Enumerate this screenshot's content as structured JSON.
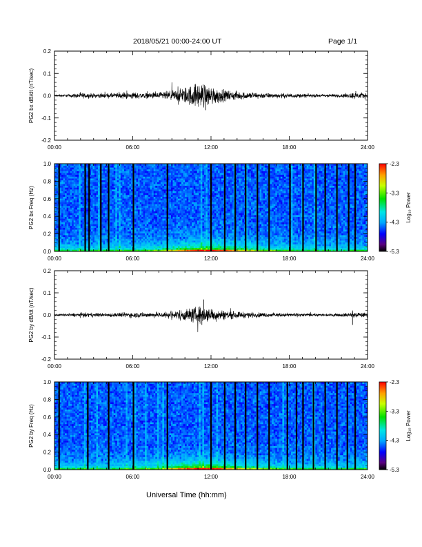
{
  "header": {
    "date_range": "2018/05/21  00:00-24:00 UT",
    "page": "Page 1/1"
  },
  "xlabel": "Universal Time (hh:mm)",
  "x_ticks": [
    "00:00",
    "06:00",
    "12:00",
    "18:00",
    "24:00"
  ],
  "colors": {
    "trace": "#000000",
    "background": "#ffffff"
  },
  "chart_data": [
    {
      "type": "line",
      "name": "time-series-bx",
      "ylabel": "PG2 bx dB/dt (nT/sec)",
      "xlim": [
        0,
        24
      ],
      "ylim": [
        -0.2,
        0.2
      ],
      "y_ticks": [
        "0.2",
        "0.1",
        "0.0",
        "-0.1",
        "-0.2"
      ],
      "y_tick_values": [
        0.2,
        0.1,
        0.0,
        -0.1,
        -0.2
      ],
      "x_ticks": [
        "00:00",
        "06:00",
        "12:00",
        "18:00",
        "24:00"
      ],
      "envelope": {
        "x": [
          0,
          1,
          2,
          3,
          4,
          5,
          6,
          7,
          8,
          9,
          10,
          11,
          12,
          13,
          14,
          15,
          16,
          17,
          18,
          19,
          20,
          21,
          22,
          23,
          24
        ],
        "amplitude": [
          0.004,
          0.005,
          0.01,
          0.008,
          0.008,
          0.01,
          0.012,
          0.01,
          0.012,
          0.018,
          0.03,
          0.045,
          0.035,
          0.02,
          0.015,
          0.012,
          0.01,
          0.008,
          0.008,
          0.007,
          0.006,
          0.006,
          0.006,
          0.012,
          0.01
        ]
      },
      "spikes": [
        {
          "x": 11.4,
          "y": 0.05
        },
        {
          "x": 11.6,
          "y": -0.065
        },
        {
          "x": 23.1,
          "y": 0.02
        },
        {
          "x": 5.3,
          "y": 0.015
        }
      ]
    },
    {
      "type": "heatmap",
      "name": "spectrogram-bx",
      "ylabel": "PG2 bx Freq (Hz)",
      "xlim": [
        0,
        24
      ],
      "ylim": [
        0.0,
        1.0
      ],
      "y_ticks": [
        "1.0",
        "0.8",
        "0.6",
        "0.4",
        "0.2",
        "0.0"
      ],
      "y_tick_values": [
        1.0,
        0.8,
        0.6,
        0.4,
        0.2,
        0.0
      ],
      "x_ticks": [
        "00:00",
        "06:00",
        "12:00",
        "18:00",
        "24:00"
      ],
      "colorbar": {
        "label": "Log₁₀ Power",
        "ticks": [
          "-2.3",
          "-3.3",
          "-4.3",
          "-5.3"
        ],
        "tick_values": [
          -2.3,
          -3.3,
          -4.3,
          -5.3
        ],
        "range": [
          -5.3,
          -2.3
        ]
      },
      "gaps_hours": [
        0.35,
        2.35,
        2.65,
        3.55,
        4.15,
        6.05,
        8.65,
        12.0,
        13.05,
        13.85,
        14.65,
        15.55,
        16.45,
        18.05,
        19.05,
        20.05,
        20.75,
        21.65,
        22.55,
        23.05
      ],
      "low_freq_enhancement": {
        "x": [
          0,
          3,
          6,
          8,
          9,
          10,
          11,
          12,
          13,
          14,
          15,
          16,
          18,
          20,
          22,
          24
        ],
        "strength": [
          0.4,
          0.4,
          0.45,
          0.55,
          0.7,
          0.85,
          0.95,
          1.0,
          0.9,
          0.75,
          0.65,
          0.55,
          0.45,
          0.4,
          0.4,
          0.45
        ]
      }
    },
    {
      "type": "line",
      "name": "time-series-by",
      "ylabel": "PG2 by dB/dt (nT/sec)",
      "xlim": [
        0,
        24
      ],
      "ylim": [
        -0.2,
        0.2
      ],
      "y_ticks": [
        "0.2",
        "0.1",
        "0.0",
        "-0.1",
        "-0.2"
      ],
      "y_tick_values": [
        0.2,
        0.1,
        0.0,
        -0.1,
        -0.2
      ],
      "x_ticks": [
        "00:00",
        "06:00",
        "12:00",
        "18:00",
        "24:00"
      ],
      "envelope": {
        "x": [
          0,
          1,
          2,
          3,
          4,
          5,
          6,
          7,
          8,
          9,
          10,
          11,
          12,
          13,
          14,
          15,
          16,
          17,
          18,
          19,
          20,
          21,
          22,
          23,
          24
        ],
        "amplitude": [
          0.004,
          0.005,
          0.008,
          0.007,
          0.007,
          0.008,
          0.01,
          0.009,
          0.01,
          0.014,
          0.022,
          0.03,
          0.025,
          0.017,
          0.012,
          0.01,
          0.008,
          0.007,
          0.007,
          0.006,
          0.005,
          0.005,
          0.006,
          0.01,
          0.008
        ]
      },
      "spikes": [
        {
          "x": 11.45,
          "y": 0.07
        },
        {
          "x": 11.3,
          "y": -0.045
        },
        {
          "x": 22.85,
          "y": -0.045
        },
        {
          "x": 22.85,
          "y": 0.02
        }
      ]
    },
    {
      "type": "heatmap",
      "name": "spectrogram-by",
      "ylabel": "PG2 by Freq (Hz)",
      "xlim": [
        0,
        24
      ],
      "ylim": [
        0.0,
        1.0
      ],
      "y_ticks": [
        "1.0",
        "0.8",
        "0.6",
        "0.4",
        "0.2",
        "0.0"
      ],
      "y_tick_values": [
        1.0,
        0.8,
        0.6,
        0.4,
        0.2,
        0.0
      ],
      "x_ticks": [
        "00:00",
        "06:00",
        "12:00",
        "18:00",
        "24:00"
      ],
      "colorbar": {
        "label": "Log₁₀ Power",
        "ticks": [
          "-2.3",
          "-3.3",
          "-4.3",
          "-5.3"
        ],
        "tick_values": [
          -2.3,
          -3.3,
          -4.3,
          -5.3
        ],
        "range": [
          -5.3,
          -2.3
        ]
      },
      "gaps_hours": [
        0.35,
        2.55,
        4.15,
        6.05,
        8.65,
        12.0,
        13.05,
        13.85,
        14.65,
        15.55,
        16.45,
        17.85,
        18.55,
        19.05,
        19.85,
        20.75,
        21.65,
        22.45,
        23.05
      ],
      "low_freq_enhancement": {
        "x": [
          0,
          3,
          6,
          8,
          9,
          10,
          11,
          12,
          13,
          14,
          15,
          16,
          18,
          20,
          22,
          24
        ],
        "strength": [
          0.4,
          0.4,
          0.45,
          0.55,
          0.75,
          0.9,
          1.0,
          1.0,
          0.85,
          0.75,
          0.65,
          0.55,
          0.45,
          0.4,
          0.4,
          0.45
        ]
      }
    }
  ]
}
